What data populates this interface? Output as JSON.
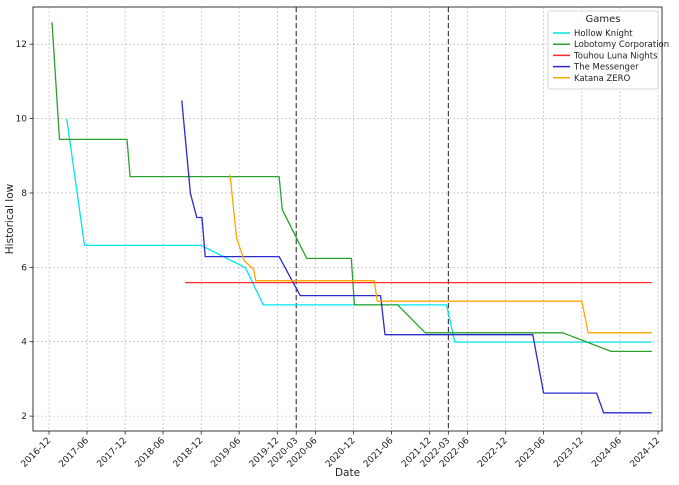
{
  "chart_data": {
    "type": "line",
    "xlabel": "Date",
    "ylabel": "Historical low",
    "ylim": [
      1.6,
      13.0
    ],
    "xlim": [
      "2016-09-15",
      "2024-12-20"
    ],
    "grid": true,
    "legend": {
      "title": "Games",
      "placement": "top-right"
    },
    "x_ticks": [
      "2016-12",
      "2017-06",
      "2017-12",
      "2018-06",
      "2018-12",
      "2019-06",
      "2019-12",
      "2020-03",
      "2020-06",
      "2020-12",
      "2021-06",
      "2021-12",
      "2022-03",
      "2022-06",
      "2022-12",
      "2023-06",
      "2023-12",
      "2024-06",
      "2024-12"
    ],
    "y_ticks": [
      2,
      4,
      6,
      8,
      10,
      12
    ],
    "vlines": [
      "2020-03-01",
      "2022-03-01"
    ],
    "series": [
      {
        "name": "Hollow Knight",
        "color": "#00e5ee",
        "points": [
          [
            "2017-02-24",
            9.99
          ],
          [
            "2017-05-20",
            6.59
          ],
          [
            "2018-12-01",
            6.59
          ],
          [
            "2019-07-01",
            5.99
          ],
          [
            "2019-09-25",
            4.99
          ],
          [
            "2022-02-20",
            4.99
          ],
          [
            "2022-04-01",
            3.99
          ],
          [
            "2024-11-01",
            3.99
          ]
        ]
      },
      {
        "name": "Lobotomy Corporation",
        "color": "#2ca02c",
        "points": [
          [
            "2016-12-15",
            12.59
          ],
          [
            "2017-01-20",
            9.44
          ],
          [
            "2017-12-10",
            9.44
          ],
          [
            "2017-12-25",
            8.44
          ],
          [
            "2019-12-10",
            8.44
          ],
          [
            "2019-12-25",
            7.55
          ],
          [
            "2020-04-20",
            6.24
          ],
          [
            "2020-11-20",
            6.24
          ],
          [
            "2020-12-05",
            4.99
          ],
          [
            "2021-07-01",
            4.99
          ],
          [
            "2021-11-10",
            4.24
          ],
          [
            "2023-09-01",
            4.24
          ],
          [
            "2024-04-20",
            3.74
          ],
          [
            "2024-11-01",
            3.74
          ]
        ]
      },
      {
        "name": "Touhou Luna Nights",
        "color": "#ff2a2a",
        "points": [
          [
            "2018-09-15",
            5.59
          ],
          [
            "2024-11-01",
            5.59
          ]
        ]
      },
      {
        "name": "The Messenger",
        "color": "#2a2ad0",
        "points": [
          [
            "2018-08-30",
            10.49
          ],
          [
            "2018-10-10",
            7.99
          ],
          [
            "2018-11-10",
            7.34
          ],
          [
            "2018-12-05",
            7.34
          ],
          [
            "2018-12-20",
            6.29
          ],
          [
            "2019-12-10",
            6.29
          ],
          [
            "2020-03-20",
            5.24
          ],
          [
            "2021-04-10",
            5.24
          ],
          [
            "2021-05-01",
            4.19
          ],
          [
            "2023-04-10",
            4.19
          ],
          [
            "2023-06-01",
            2.62
          ],
          [
            "2024-02-10",
            2.62
          ],
          [
            "2024-03-15",
            2.09
          ],
          [
            "2024-11-01",
            2.09
          ]
        ]
      },
      {
        "name": "Katana ZERO",
        "color": "#ffa500",
        "points": [
          [
            "2019-04-18",
            8.49
          ],
          [
            "2019-05-20",
            6.79
          ],
          [
            "2019-06-25",
            6.19
          ],
          [
            "2019-08-10",
            5.94
          ],
          [
            "2019-08-20",
            5.64
          ],
          [
            "2021-03-10",
            5.64
          ],
          [
            "2021-03-25",
            5.09
          ],
          [
            "2023-12-01",
            5.09
          ],
          [
            "2024-01-01",
            4.24
          ],
          [
            "2024-11-01",
            4.24
          ]
        ]
      }
    ]
  }
}
